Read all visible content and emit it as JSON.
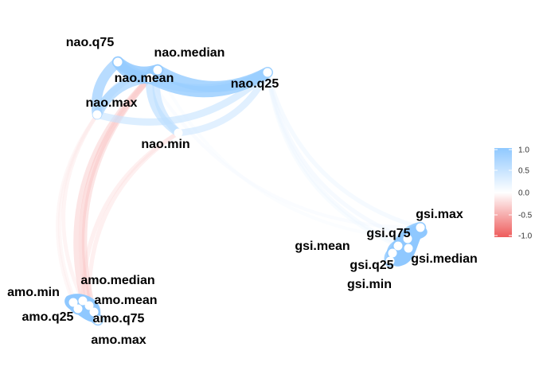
{
  "chart_data": {
    "type": "network",
    "title": "",
    "colors": {
      "positive": "#8FC8FF",
      "neutral": "#FFFFFF",
      "negative": "#EE5B5B"
    },
    "legend": {
      "placement": "right",
      "ticks": [
        "1.0",
        "0.5",
        "0.0",
        "-0.5",
        "-1.0"
      ],
      "range": [
        -1,
        1
      ]
    },
    "nodes": [
      {
        "id": "nao.q75",
        "label": "nao.q75"
      },
      {
        "id": "nao.median",
        "label": "nao.median"
      },
      {
        "id": "nao.mean",
        "label": "nao.mean"
      },
      {
        "id": "nao.q25",
        "label": "nao.q25"
      },
      {
        "id": "nao.max",
        "label": "nao.max"
      },
      {
        "id": "nao.min",
        "label": "nao.min"
      },
      {
        "id": "gsi.max",
        "label": "gsi.max"
      },
      {
        "id": "gsi.q75",
        "label": "gsi.q75"
      },
      {
        "id": "gsi.mean",
        "label": "gsi.mean"
      },
      {
        "id": "gsi.q25",
        "label": "gsi.q25"
      },
      {
        "id": "gsi.median",
        "label": "gsi.median"
      },
      {
        "id": "gsi.min",
        "label": "gsi.min"
      },
      {
        "id": "amo.median",
        "label": "amo.median"
      },
      {
        "id": "amo.min",
        "label": "amo.min"
      },
      {
        "id": "amo.mean",
        "label": "amo.mean"
      },
      {
        "id": "amo.q25",
        "label": "amo.q25"
      },
      {
        "id": "amo.q75",
        "label": "amo.q75"
      },
      {
        "id": "amo.max",
        "label": "amo.max"
      }
    ],
    "edges": [
      {
        "from": "nao.q75",
        "to": "nao.mean",
        "r": 0.95
      },
      {
        "from": "nao.q75",
        "to": "nao.median",
        "r": 0.95
      },
      {
        "from": "nao.q75",
        "to": "nao.max",
        "r": 0.8
      },
      {
        "from": "nao.median",
        "to": "nao.mean",
        "r": 0.95
      },
      {
        "from": "nao.median",
        "to": "nao.q25",
        "r": 0.9
      },
      {
        "from": "nao.mean",
        "to": "nao.q25",
        "r": 0.9
      },
      {
        "from": "nao.mean",
        "to": "nao.max",
        "r": 0.75
      },
      {
        "from": "nao.mean",
        "to": "nao.min",
        "r": 0.6
      },
      {
        "from": "nao.max",
        "to": "nao.q25",
        "r": 0.5
      },
      {
        "from": "nao.q75",
        "to": "nao.q25",
        "r": 0.65
      },
      {
        "from": "nao.min",
        "to": "nao.q25",
        "r": 0.45
      },
      {
        "from": "nao.median",
        "to": "nao.min",
        "r": 0.55
      },
      {
        "from": "nao.median",
        "to": "nao.max",
        "r": 0.5
      },
      {
        "from": "gsi.max",
        "to": "gsi.q75",
        "r": 0.95
      },
      {
        "from": "gsi.q75",
        "to": "gsi.mean",
        "r": 0.98
      },
      {
        "from": "gsi.mean",
        "to": "gsi.q25",
        "r": 0.98
      },
      {
        "from": "gsi.q25",
        "to": "gsi.min",
        "r": 0.95
      },
      {
        "from": "gsi.q75",
        "to": "gsi.median",
        "r": 0.97
      },
      {
        "from": "gsi.mean",
        "to": "gsi.median",
        "r": 0.99
      },
      {
        "from": "gsi.q25",
        "to": "gsi.median",
        "r": 0.97
      },
      {
        "from": "gsi.max",
        "to": "gsi.mean",
        "r": 0.9
      },
      {
        "from": "gsi.min",
        "to": "gsi.mean",
        "r": 0.9
      },
      {
        "from": "amo.median",
        "to": "amo.mean",
        "r": 0.98
      },
      {
        "from": "amo.mean",
        "to": "amo.q75",
        "r": 0.97
      },
      {
        "from": "amo.q75",
        "to": "amo.max",
        "r": 0.95
      },
      {
        "from": "amo.min",
        "to": "amo.q25",
        "r": 0.95
      },
      {
        "from": "amo.q25",
        "to": "amo.mean",
        "r": 0.97
      },
      {
        "from": "amo.median",
        "to": "amo.q25",
        "r": 0.96
      },
      {
        "from": "amo.median",
        "to": "amo.q75",
        "r": 0.96
      },
      {
        "from": "amo.min",
        "to": "amo.mean",
        "r": 0.9
      },
      {
        "from": "nao.q25",
        "to": "gsi.max",
        "r": 0.2
      },
      {
        "from": "nao.q25",
        "to": "gsi.q75",
        "r": 0.18
      },
      {
        "from": "nao.q25",
        "to": "gsi.median",
        "r": 0.16
      },
      {
        "from": "nao.q25",
        "to": "gsi.mean",
        "r": 0.15
      },
      {
        "from": "nao.mean",
        "to": "gsi.max",
        "r": 0.12
      },
      {
        "from": "nao.median",
        "to": "gsi.q75",
        "r": 0.1
      },
      {
        "from": "nao.mean",
        "to": "amo.median",
        "r": -0.3
      },
      {
        "from": "nao.median",
        "to": "amo.mean",
        "r": -0.35
      },
      {
        "from": "nao.median",
        "to": "amo.q75",
        "r": -0.3
      },
      {
        "from": "nao.min",
        "to": "amo.median",
        "r": -0.2
      },
      {
        "from": "nao.min",
        "to": "amo.mean",
        "r": -0.2
      },
      {
        "from": "nao.max",
        "to": "amo.median",
        "r": -0.15
      },
      {
        "from": "nao.max",
        "to": "amo.min",
        "r": -0.12
      },
      {
        "from": "nao.max",
        "to": "amo.q25",
        "r": -0.12
      }
    ]
  }
}
